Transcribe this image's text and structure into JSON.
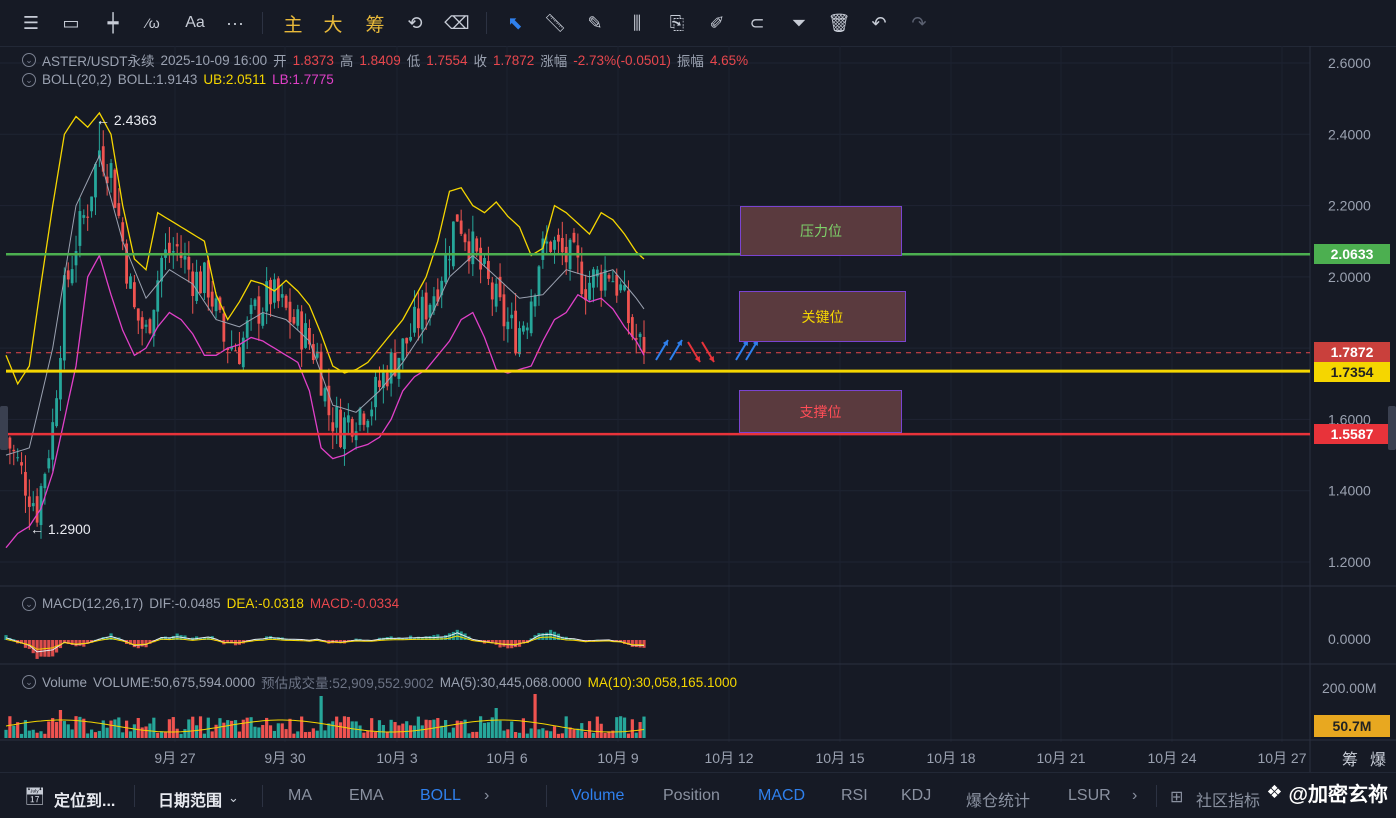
{
  "toolbar": {
    "items": [
      {
        "name": "menu-icon",
        "glyph": "☰"
      },
      {
        "name": "rectangle-icon",
        "glyph": "▭"
      },
      {
        "name": "horizontal-line-icon",
        "glyph": "┿"
      },
      {
        "name": "indicator-icon",
        "glyph": "f(x)"
      },
      {
        "name": "text-icon",
        "glyph": "Aa"
      },
      {
        "name": "more-icon",
        "glyph": "···"
      }
    ],
    "gold_labels": [
      "主",
      "大",
      "筹"
    ]
  },
  "legend": {
    "symbol": "ASTER/USDT永续",
    "datetime": "2025-10-09 16:00",
    "open_label": "开",
    "open": "1.8373",
    "high_label": "高",
    "high": "1.8409",
    "low_label": "低",
    "low": "1.7554",
    "close_label": "收",
    "close": "1.7872",
    "change_label": "涨幅",
    "change": "-2.73%(-0.0501)",
    "amp_label": "振幅",
    "amp": "4.65%",
    "boll_name": "BOLL(20,2)",
    "boll": "BOLL:1.9143",
    "ub": "UB:2.0511",
    "lb": "LB:1.7775",
    "macd_name": "MACD(12,26,17)",
    "dif": "DIF:-0.0485",
    "dea": "DEA:-0.0318",
    "macd": "MACD:-0.0334",
    "vol_name": "Volume",
    "vol": "VOLUME:50,675,594.0000",
    "vol_est": "预估成交量:52,909,552.9002",
    "ma5": "MA(5):30,445,068.0000",
    "ma10": "MA(10):30,058,165.1000"
  },
  "annotations": {
    "high_marker": "← 2.4363",
    "low_marker": "← 1.2900",
    "zones": [
      "压力位",
      "关键位",
      "支撑位"
    ]
  },
  "price_tags": {
    "resistance": "2.0633",
    "last": "1.7872",
    "key": "1.7354",
    "support": "1.5587"
  },
  "colors": {
    "background": "#161a25",
    "up": "#26a69a",
    "down": "#ef5350",
    "boll_ub": "#f5d600",
    "boll_lb": "#e040c8",
    "boll_mid": "#9aa1b0",
    "resistance": "#4caf50",
    "key": "#f5d600",
    "support": "#e8333a"
  },
  "chart_data": {
    "type": "candlestick",
    "symbol": "ASTER/USDT",
    "price_axis": {
      "ticks": [
        "2.6000",
        "2.4000",
        "2.2000",
        "2.0000",
        "1.8000",
        "1.6000",
        "1.4000",
        "1.2000"
      ],
      "ylim": [
        1.13,
        2.65
      ]
    },
    "macd_axis": {
      "ticks": [
        "0.0000"
      ]
    },
    "volume_axis": {
      "ticks": [
        "200.00M"
      ],
      "current": "50.7M"
    },
    "x_ticks": [
      "9月 27",
      "9月 30",
      "10月 3",
      "10月 6",
      "10月 9",
      "10月 12",
      "10月 15",
      "10月 18",
      "10月 21",
      "10月 24",
      "10月 27"
    ],
    "x_extra_labels": [
      "筹",
      "爆"
    ],
    "levels": {
      "resistance": 2.0633,
      "key": 1.7354,
      "support": 1.5587,
      "last": 1.7872
    },
    "extremes": {
      "high": 2.4363,
      "low": 1.29
    },
    "boll_ub_path": [
      [
        0,
        1.78
      ],
      [
        3,
        1.7
      ],
      [
        6,
        1.75
      ],
      [
        9,
        1.98
      ],
      [
        12,
        2.2
      ],
      [
        15,
        2.4
      ],
      [
        18,
        2.45
      ],
      [
        21,
        2.42
      ],
      [
        24,
        2.46
      ],
      [
        27,
        2.4
      ],
      [
        30,
        2.2
      ],
      [
        33,
        2.05
      ],
      [
        36,
        2.02
      ],
      [
        39,
        2.18
      ],
      [
        42,
        2.16
      ],
      [
        45,
        2.14
      ],
      [
        48,
        2.12
      ],
      [
        51,
        2.1
      ],
      [
        54,
        1.95
      ],
      [
        57,
        1.88
      ],
      [
        60,
        1.93
      ],
      [
        63,
        1.99
      ],
      [
        66,
        1.98
      ],
      [
        69,
        1.96
      ],
      [
        72,
        1.99
      ],
      [
        75,
        1.96
      ],
      [
        78,
        1.92
      ],
      [
        81,
        1.84
      ],
      [
        84,
        1.75
      ],
      [
        87,
        1.73
      ],
      [
        90,
        1.74
      ],
      [
        93,
        1.76
      ],
      [
        96,
        1.8
      ],
      [
        99,
        1.84
      ],
      [
        102,
        1.88
      ],
      [
        105,
        1.94
      ],
      [
        108,
        2.0
      ],
      [
        111,
        2.1
      ],
      [
        114,
        2.24
      ],
      [
        117,
        2.25
      ],
      [
        120,
        2.2
      ],
      [
        123,
        2.18
      ],
      [
        126,
        2.21
      ],
      [
        129,
        2.17
      ],
      [
        132,
        2.14
      ],
      [
        135,
        2.06
      ],
      [
        138,
        2.08
      ],
      [
        141,
        2.2
      ],
      [
        144,
        2.18
      ],
      [
        147,
        2.15
      ],
      [
        150,
        2.12
      ],
      [
        153,
        2.18
      ],
      [
        156,
        2.16
      ],
      [
        159,
        2.12
      ],
      [
        162,
        2.07
      ],
      [
        164,
        2.05
      ]
    ],
    "boll_lb_path": [
      [
        0,
        1.24
      ],
      [
        3,
        1.28
      ],
      [
        6,
        1.3
      ],
      [
        9,
        1.35
      ],
      [
        12,
        1.45
      ],
      [
        15,
        1.6
      ],
      [
        18,
        1.75
      ],
      [
        21,
        2.0
      ],
      [
        24,
        2.06
      ],
      [
        27,
        1.95
      ],
      [
        30,
        1.85
      ],
      [
        33,
        1.78
      ],
      [
        36,
        1.8
      ],
      [
        39,
        1.86
      ],
      [
        42,
        1.9
      ],
      [
        45,
        1.88
      ],
      [
        48,
        1.84
      ],
      [
        51,
        1.78
      ],
      [
        54,
        1.78
      ],
      [
        57,
        1.8
      ],
      [
        60,
        1.81
      ],
      [
        63,
        1.83
      ],
      [
        66,
        1.82
      ],
      [
        69,
        1.8
      ],
      [
        72,
        1.78
      ],
      [
        75,
        1.76
      ],
      [
        78,
        1.68
      ],
      [
        81,
        1.52
      ],
      [
        84,
        1.49
      ],
      [
        87,
        1.5
      ],
      [
        90,
        1.52
      ],
      [
        93,
        1.53
      ],
      [
        96,
        1.55
      ],
      [
        99,
        1.6
      ],
      [
        102,
        1.68
      ],
      [
        105,
        1.72
      ],
      [
        108,
        1.74
      ],
      [
        111,
        1.78
      ],
      [
        114,
        1.82
      ],
      [
        117,
        1.88
      ],
      [
        120,
        1.9
      ],
      [
        123,
        1.83
      ],
      [
        126,
        1.74
      ],
      [
        129,
        1.73
      ],
      [
        132,
        1.74
      ],
      [
        135,
        1.75
      ],
      [
        138,
        1.82
      ],
      [
        141,
        1.88
      ],
      [
        144,
        1.9
      ],
      [
        147,
        1.95
      ],
      [
        150,
        1.93
      ],
      [
        153,
        1.94
      ],
      [
        156,
        1.91
      ],
      [
        159,
        1.86
      ],
      [
        162,
        1.82
      ],
      [
        164,
        1.78
      ]
    ],
    "boll_mid_path": [
      [
        0,
        1.5
      ],
      [
        6,
        1.52
      ],
      [
        12,
        1.8
      ],
      [
        18,
        2.2
      ],
      [
        24,
        2.34
      ],
      [
        30,
        2.1
      ],
      [
        36,
        1.94
      ],
      [
        42,
        2.02
      ],
      [
        48,
        1.98
      ],
      [
        54,
        1.88
      ],
      [
        60,
        1.86
      ],
      [
        66,
        1.9
      ],
      [
        72,
        1.88
      ],
      [
        78,
        1.82
      ],
      [
        84,
        1.64
      ],
      [
        90,
        1.62
      ],
      [
        96,
        1.68
      ],
      [
        102,
        1.76
      ],
      [
        108,
        1.86
      ],
      [
        114,
        2.0
      ],
      [
        120,
        2.06
      ],
      [
        126,
        2.0
      ],
      [
        132,
        1.94
      ],
      [
        138,
        1.95
      ],
      [
        144,
        2.02
      ],
      [
        150,
        2.0
      ],
      [
        156,
        2.02
      ],
      [
        162,
        1.94
      ],
      [
        164,
        1.91
      ]
    ],
    "candle_path": [
      [
        0,
        1.55
      ],
      [
        4,
        1.45
      ],
      [
        8,
        1.35
      ],
      [
        12,
        1.58
      ],
      [
        15,
        1.95
      ],
      [
        18,
        2.1
      ],
      [
        21,
        2.2
      ],
      [
        24,
        2.36
      ],
      [
        27,
        2.3
      ],
      [
        30,
        2.1
      ],
      [
        33,
        1.9
      ],
      [
        36,
        1.84
      ],
      [
        40,
        2.05
      ],
      [
        44,
        2.08
      ],
      [
        48,
        2.0
      ],
      [
        52,
        1.98
      ],
      [
        56,
        1.82
      ],
      [
        60,
        1.8
      ],
      [
        64,
        1.9
      ],
      [
        68,
        1.95
      ],
      [
        72,
        1.9
      ],
      [
        76,
        1.85
      ],
      [
        80,
        1.78
      ],
      [
        83,
        1.62
      ],
      [
        86,
        1.58
      ],
      [
        90,
        1.62
      ],
      [
        94,
        1.65
      ],
      [
        98,
        1.74
      ],
      [
        102,
        1.8
      ],
      [
        106,
        1.88
      ],
      [
        110,
        1.96
      ],
      [
        113,
        2.05
      ],
      [
        116,
        2.18
      ],
      [
        119,
        2.1
      ],
      [
        122,
        2.02
      ],
      [
        125,
        1.95
      ],
      [
        128,
        1.88
      ],
      [
        131,
        1.84
      ],
      [
        134,
        1.9
      ],
      [
        137,
        2.05
      ],
      [
        140,
        2.1
      ],
      [
        143,
        2.06
      ],
      [
        146,
        2.04
      ],
      [
        149,
        1.98
      ],
      [
        152,
        2.0
      ],
      [
        155,
        2.02
      ],
      [
        158,
        1.96
      ],
      [
        161,
        1.84
      ],
      [
        164,
        1.7872
      ]
    ],
    "volume_ma_label": "MA(10)",
    "signal_arrows": [
      "up",
      "up",
      "down",
      "down",
      "up",
      "up"
    ]
  },
  "bottombar": {
    "locate": "定位到...",
    "date_range": "日期范围",
    "indicators": [
      "MA",
      "EMA",
      "BOLL"
    ],
    "subs": [
      "Volume",
      "Position",
      "MACD",
      "RSI",
      "KDJ",
      "爆仓统计",
      "LSUR"
    ],
    "community": "社区指标",
    "watermark": "@加密玄祢"
  }
}
